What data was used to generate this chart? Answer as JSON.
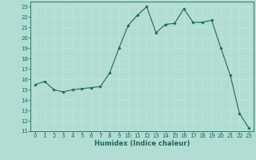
{
  "x": [
    0,
    1,
    2,
    3,
    4,
    5,
    6,
    7,
    8,
    9,
    10,
    11,
    12,
    13,
    14,
    15,
    16,
    17,
    18,
    19,
    20,
    21,
    22,
    23
  ],
  "y": [
    15.5,
    15.8,
    15.0,
    14.8,
    15.0,
    15.1,
    15.2,
    15.3,
    16.6,
    19.0,
    21.2,
    22.2,
    23.0,
    20.5,
    21.3,
    21.4,
    22.8,
    21.5,
    21.5,
    21.7,
    19.0,
    16.4,
    12.7,
    11.3
  ],
  "line_color": "#1a6b5a",
  "marker": "D",
  "marker_size": 1.8,
  "bg_color": "#b2ddd4",
  "grid_color": "#c0e6de",
  "axis_color": "#1a6b5a",
  "xlabel": "Humidex (Indice chaleur)",
  "xlim": [
    -0.5,
    23.5
  ],
  "ylim": [
    11,
    23.5
  ],
  "xticks": [
    0,
    1,
    2,
    3,
    4,
    5,
    6,
    7,
    8,
    9,
    10,
    11,
    12,
    13,
    14,
    15,
    16,
    17,
    18,
    19,
    20,
    21,
    22,
    23
  ],
  "yticks": [
    11,
    12,
    13,
    14,
    15,
    16,
    17,
    18,
    19,
    20,
    21,
    22,
    23
  ],
  "tick_fontsize": 5.0,
  "label_fontsize": 6.0
}
